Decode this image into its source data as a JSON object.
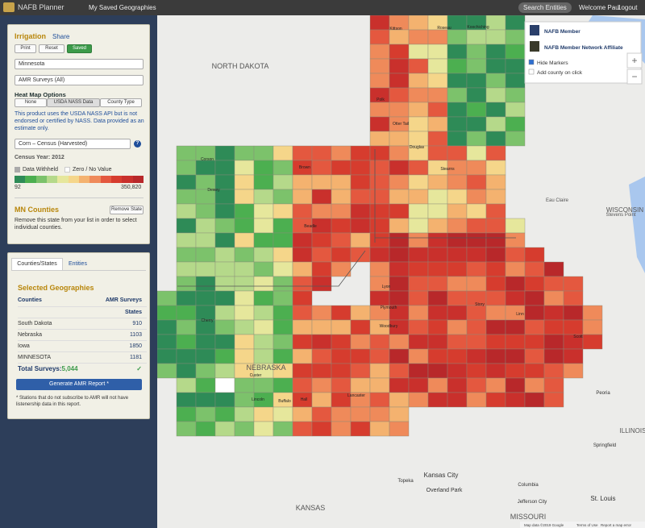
{
  "nav": {
    "brand": "NAFB Planner",
    "saved": "My Saved Geographies",
    "search": "Search Entities",
    "welcome": "Welcome Paul",
    "separator": "·",
    "logout": "Logout"
  },
  "panel": {
    "title": "Irrigation",
    "share": "Share",
    "buttons": [
      "Print",
      "Reset",
      "Saved"
    ],
    "state_select": "Minnesota",
    "survey_select": "AMR Surveys (All)",
    "heat_map_title": "Heat Map Options",
    "heat_tabs": [
      "None",
      "USDA NASS Data",
      "County Type"
    ],
    "disclaimer": "This product uses the USDA NASS API but is not endorsed or certified by NASS. Data provided as an estimate only.",
    "data_select": "Corn – Census (Harvested)",
    "help": "?",
    "census_year": "Census Year: 2012",
    "withheld": "Data Withheld",
    "zero": "Zero / No Value",
    "legend_min": "92",
    "legend_max": "350,820",
    "counties_title": "MN Counties",
    "remove_state": "Remove State",
    "remove_note": "Remove this state from your list in order to select individual counties."
  },
  "geographies": {
    "tabs": [
      "Counties/States",
      "Entities"
    ],
    "title": "Selected Geographies",
    "header": [
      "Counties",
      "AMR Surveys"
    ],
    "group": "States",
    "rows": [
      [
        "South Dakota",
        910
      ],
      [
        "Nebraska",
        1103
      ],
      [
        "Iowa",
        1850
      ],
      [
        "MINNESOTA",
        1181
      ]
    ],
    "total_label": "Total Surveys:",
    "total": "5,044",
    "report": "Generate AMR Report *",
    "note": "* Stations that do not subscribe to AMR will not have listenership data in this report."
  },
  "map": {
    "legend": [
      "NAFB Member",
      "NAFB Member Network Affiliate"
    ],
    "options": [
      "Hide Markers",
      "Add county on click"
    ],
    "zoom": [
      "+",
      "−"
    ],
    "labels": [
      "NORTH DAKOTA",
      "NEBRASKA",
      "KANSAS",
      "MISSOURI",
      "WISCONSIN",
      "ILLINOIS",
      "Eau Claire",
      "Stevens Point",
      "Kansas City",
      "Overland Park",
      "Topeka",
      "Columbia",
      "Jefferson City",
      "St. Louis",
      "Springfield",
      "Peoria",
      "Kittson",
      "Roseau",
      "Koochiching",
      "Polk",
      "Otter Tail",
      "Douglas",
      "Stearns",
      "Brown",
      "Corson",
      "Dewey",
      "Beadle",
      "Lyon",
      "Woodbury",
      "Cherry",
      "Custer",
      "Lincoln",
      "Buffalo",
      "Hall",
      "Lancaster",
      "Plymouth",
      "Story",
      "Linn",
      "Scott"
    ],
    "footer": [
      "Map data ©2019 Google",
      "Terms of Use",
      "Report a map error"
    ]
  }
}
